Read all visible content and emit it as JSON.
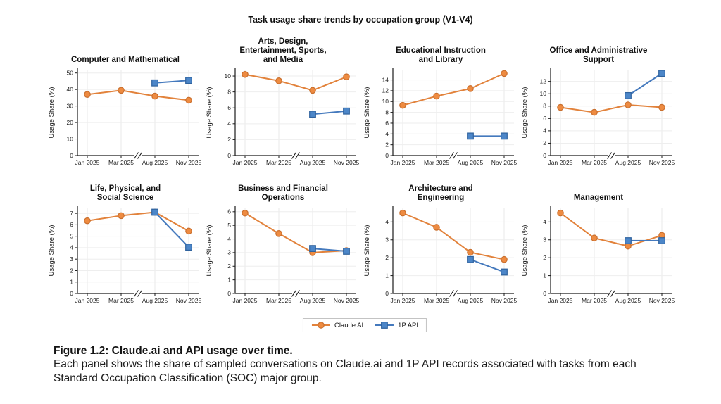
{
  "title": "Task usage share trends by occupation group (V1-V4)",
  "legend": {
    "items": [
      {
        "label": "Claude AI",
        "marker": "circle",
        "line_color": "#E2823B",
        "fill": "#EE8B41",
        "edge": "#C96F2E"
      },
      {
        "label": "1P API",
        "marker": "square",
        "line_color": "#4479BD",
        "fill": "#4C86C8",
        "edge": "#30639E"
      }
    ]
  },
  "caption": {
    "heading": "Figure 1.2: Claude.ai and API usage over time.",
    "body": "Each panel shows the share of sampled conversations on Claude.ai and 1P API records associated with tasks from each Standard Occupation Classification (SOC) major group."
  },
  "chart_data": {
    "type": "line",
    "x_categories": [
      "Jan 2025",
      "Mar 2025",
      "Aug 2025",
      "Nov 2025"
    ],
    "axis_break_between": [
      "Mar 2025",
      "Aug 2025"
    ],
    "ylabel": "Usage Share (%)",
    "grid": true,
    "legend_position": "bottom-center",
    "panels": [
      {
        "title": "Computer and Mathematical",
        "yticks": [
          0,
          10,
          20,
          30,
          40,
          50
        ],
        "ylim": [
          0,
          52
        ],
        "series": [
          {
            "name": "Claude AI",
            "values": [
              37,
              39.5,
              36,
              33.5
            ]
          },
          {
            "name": "1P API",
            "values": [
              null,
              null,
              44,
              45.5
            ]
          }
        ]
      },
      {
        "title": "Arts, Design,\nEntertainment, Sports,\nand Media",
        "yticks": [
          0,
          2,
          4,
          6,
          8,
          10
        ],
        "ylim": [
          0,
          10.8
        ],
        "series": [
          {
            "name": "Claude AI",
            "values": [
              10.2,
              9.4,
              8.2,
              9.9
            ]
          },
          {
            "name": "1P API",
            "values": [
              null,
              null,
              5.2,
              5.6
            ]
          }
        ]
      },
      {
        "title": "Educational Instruction\nand Library",
        "yticks": [
          0,
          2,
          4,
          6,
          8,
          10,
          12,
          14
        ],
        "ylim": [
          0,
          15.9
        ],
        "series": [
          {
            "name": "Claude AI",
            "values": [
              9.3,
              11,
              12.4,
              15.2
            ]
          },
          {
            "name": "1P API",
            "values": [
              null,
              null,
              3.6,
              3.6
            ]
          }
        ]
      },
      {
        "title": "Office and Administrative\nSupport",
        "yticks": [
          0,
          2,
          4,
          6,
          8,
          10,
          12
        ],
        "ylim": [
          0,
          13.9
        ],
        "series": [
          {
            "name": "Claude AI",
            "values": [
              7.8,
              7,
              8.2,
              7.8
            ]
          },
          {
            "name": "1P API",
            "values": [
              null,
              null,
              9.7,
              13.3
            ]
          }
        ]
      },
      {
        "title": "Life, Physical, and\nSocial Science",
        "yticks": [
          0,
          1,
          2,
          3,
          4,
          5,
          6,
          7
        ],
        "ylim": [
          0,
          7.5
        ],
        "series": [
          {
            "name": "Claude AI",
            "values": [
              6.35,
              6.8,
              7.1,
              5.45
            ]
          },
          {
            "name": "1P API",
            "values": [
              null,
              null,
              7.1,
              4.05
            ]
          }
        ]
      },
      {
        "title": "Business and Financial\nOperations",
        "yticks": [
          0,
          1,
          2,
          3,
          4,
          5,
          6
        ],
        "ylim": [
          0,
          6.3
        ],
        "series": [
          {
            "name": "Claude AI",
            "values": [
              5.9,
              4.4,
              3,
              3.15
            ]
          },
          {
            "name": "1P API",
            "values": [
              null,
              null,
              3.3,
              3.1
            ]
          }
        ]
      },
      {
        "title": "Architecture and\nEngineering",
        "yticks": [
          0,
          1,
          2,
          3,
          4
        ],
        "ylim": [
          0,
          4.8
        ],
        "series": [
          {
            "name": "Claude AI",
            "values": [
              4.5,
              3.7,
              2.3,
              1.9
            ]
          },
          {
            "name": "1P API",
            "values": [
              null,
              null,
              1.9,
              1.2
            ]
          }
        ]
      },
      {
        "title": "Management",
        "yticks": [
          0,
          1,
          2,
          3,
          4
        ],
        "ylim": [
          0,
          4.8
        ],
        "series": [
          {
            "name": "Claude AI",
            "values": [
              4.5,
              3.1,
              2.65,
              3.25
            ]
          },
          {
            "name": "1P API",
            "values": [
              null,
              null,
              2.95,
              2.95
            ]
          }
        ]
      }
    ]
  }
}
